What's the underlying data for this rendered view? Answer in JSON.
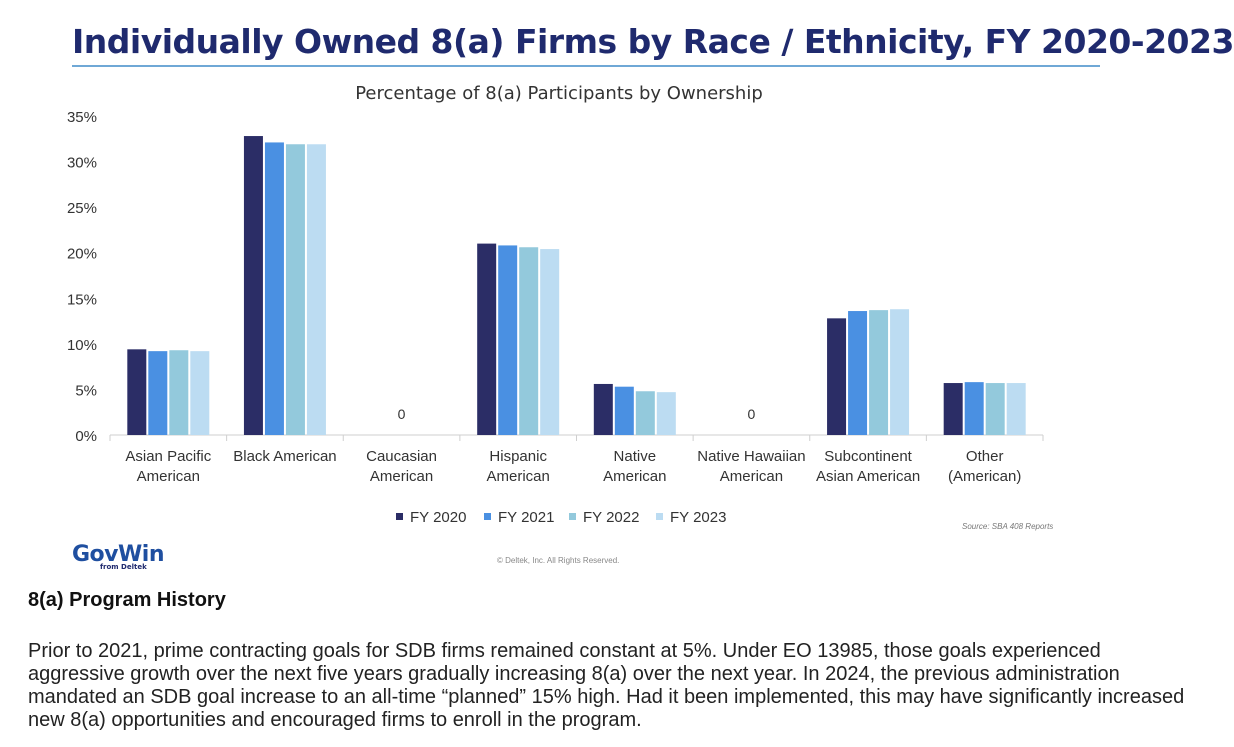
{
  "page": {
    "title": "Individually Owned 8(a) Firms by Race / Ethnicity, FY 2020-2023",
    "source": "Source: SBA 408 Reports",
    "copyright": "© Deltek, Inc. All Rights Reserved.",
    "logo_main": "GovWin",
    "logo_sub": "from Deltek"
  },
  "colors": {
    "title": "#1f2a6e",
    "rule": "#6fa8d6",
    "series": [
      "#2b2d66",
      "#4a90e2",
      "#93c9dc",
      "#bcdcf2"
    ]
  },
  "chart_data": {
    "type": "bar",
    "title": "Percentage of 8(a) Participants by Ownership",
    "xlabel": "",
    "ylabel": "",
    "ylim": [
      0,
      35
    ],
    "yticks": [
      "0%",
      "5%",
      "10%",
      "15%",
      "20%",
      "25%",
      "30%",
      "35%"
    ],
    "categories": [
      [
        "Asian Pacific",
        "American"
      ],
      [
        "Black American"
      ],
      [
        "Caucasian",
        "American"
      ],
      [
        "Hispanic",
        "American"
      ],
      [
        "Native",
        "American"
      ],
      [
        "Native Hawaiian",
        "American"
      ],
      [
        "Subcontinent",
        "Asian American"
      ],
      [
        "Other",
        "(American)"
      ]
    ],
    "series": [
      {
        "name": "FY 2020",
        "values": [
          9.4,
          32.8,
          0,
          21.0,
          5.6,
          0,
          12.8,
          5.7
        ]
      },
      {
        "name": "FY 2021",
        "values": [
          9.2,
          32.1,
          0,
          20.8,
          5.3,
          0,
          13.6,
          5.8
        ]
      },
      {
        "name": "FY 2022",
        "values": [
          9.3,
          31.9,
          0,
          20.6,
          4.8,
          0,
          13.7,
          5.7
        ]
      },
      {
        "name": "FY 2023",
        "values": [
          9.2,
          31.9,
          0,
          20.4,
          4.7,
          0,
          13.8,
          5.7
        ]
      }
    ],
    "zero_labels": [
      {
        "category_index": 2,
        "label": "0"
      },
      {
        "category_index": 5,
        "label": "0"
      }
    ],
    "legend_position": "bottom"
  },
  "article": {
    "heading": "8(a) Program History",
    "paragraph": "Prior to 2021, prime contracting goals for SDB firms remained constant at 5%. Under EO 13985, those goals experienced aggressive growth over the next five years gradually increasing 8(a) over the next year. In 2024, the previous administration mandated an SDB goal increase to an all-time “planned” 15% high. Had it been implemented, this may have significantly increased new 8(a) opportunities and encouraged firms to enroll in the program."
  }
}
